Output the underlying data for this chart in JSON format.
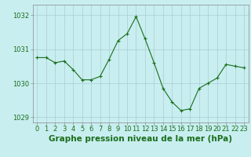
{
  "x": [
    0,
    1,
    2,
    3,
    4,
    5,
    6,
    7,
    8,
    9,
    10,
    11,
    12,
    13,
    14,
    15,
    16,
    17,
    18,
    19,
    20,
    21,
    22,
    23
  ],
  "y": [
    1030.75,
    1030.75,
    1030.6,
    1030.65,
    1030.4,
    1030.1,
    1030.1,
    1030.2,
    1030.7,
    1031.25,
    1031.45,
    1031.95,
    1031.3,
    1030.6,
    1029.85,
    1029.45,
    1029.2,
    1029.25,
    1029.85,
    1030.0,
    1030.15,
    1030.55,
    1030.5,
    1030.45
  ],
  "ylim": [
    1028.85,
    1032.3
  ],
  "yticks": [
    1029,
    1030,
    1031,
    1032
  ],
  "xticks": [
    0,
    1,
    2,
    3,
    4,
    5,
    6,
    7,
    8,
    9,
    10,
    11,
    12,
    13,
    14,
    15,
    16,
    17,
    18,
    19,
    20,
    21,
    22,
    23
  ],
  "line_color": "#1a6e1a",
  "marker_color": "#1a6e1a",
  "bg_color": "#c8eef0",
  "grid_color": "#aaccd4",
  "axis_color": "#888888",
  "xlabel": "Graphe pression niveau de la mer (hPa)",
  "xlabel_color": "#1a6e1a",
  "tick_label_color": "#1a6e1a",
  "tick_fontsize": 6.0,
  "xlabel_fontsize": 7.5
}
